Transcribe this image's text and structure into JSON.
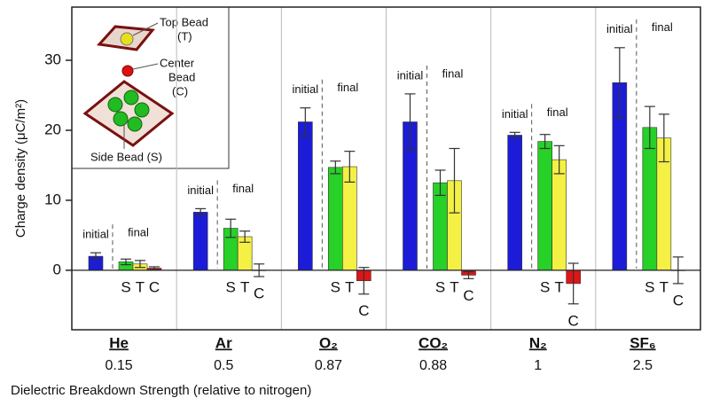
{
  "chart_data": {
    "type": "bar",
    "y_label": "Charge density (μC/m²)",
    "x_label": "Dielectric Breakdown Strength (relative to nitrogen)",
    "categories": [
      "He",
      "Ar",
      "O₂",
      "CO₂",
      "N₂",
      "SF₆"
    ],
    "breakdown_strength": [
      0.15,
      0.5,
      0.87,
      0.88,
      1,
      2.5
    ],
    "final_label": "final",
    "series": [
      {
        "name": "initial",
        "color": "#1c1cd8",
        "values": [
          2.0,
          8.3,
          21.2,
          21.2,
          19.3,
          26.8
        ],
        "errors": [
          0.5,
          0.5,
          2.0,
          4.0,
          0.4,
          5.0
        ]
      },
      {
        "name": "S",
        "color": "#27d127",
        "values": [
          1.2,
          6.0,
          14.7,
          12.5,
          18.4,
          20.4
        ],
        "errors": [
          0.4,
          1.3,
          0.9,
          1.8,
          1.0,
          3.0
        ]
      },
      {
        "name": "T",
        "color": "#f4f044",
        "values": [
          0.9,
          4.8,
          14.8,
          12.8,
          15.8,
          18.9
        ],
        "errors": [
          0.5,
          0.8,
          2.2,
          4.6,
          2.0,
          3.4
        ]
      },
      {
        "name": "C",
        "color": "#dd1515",
        "values": [
          0.3,
          0.0,
          -1.5,
          -0.7,
          -1.9,
          0.0
        ],
        "errors": [
          0.2,
          0.9,
          1.9,
          0.5,
          2.9,
          1.9
        ]
      }
    ],
    "ylim": [
      -8.5,
      37.6
    ],
    "yticks": [
      0,
      10,
      20,
      30
    ],
    "inset": {
      "top_bead": [
        "Top Bead",
        "(T)"
      ],
      "center_bead": [
        "Center",
        "Bead",
        "(C)"
      ],
      "side_bead": [
        "Side Bead (S)"
      ]
    }
  }
}
